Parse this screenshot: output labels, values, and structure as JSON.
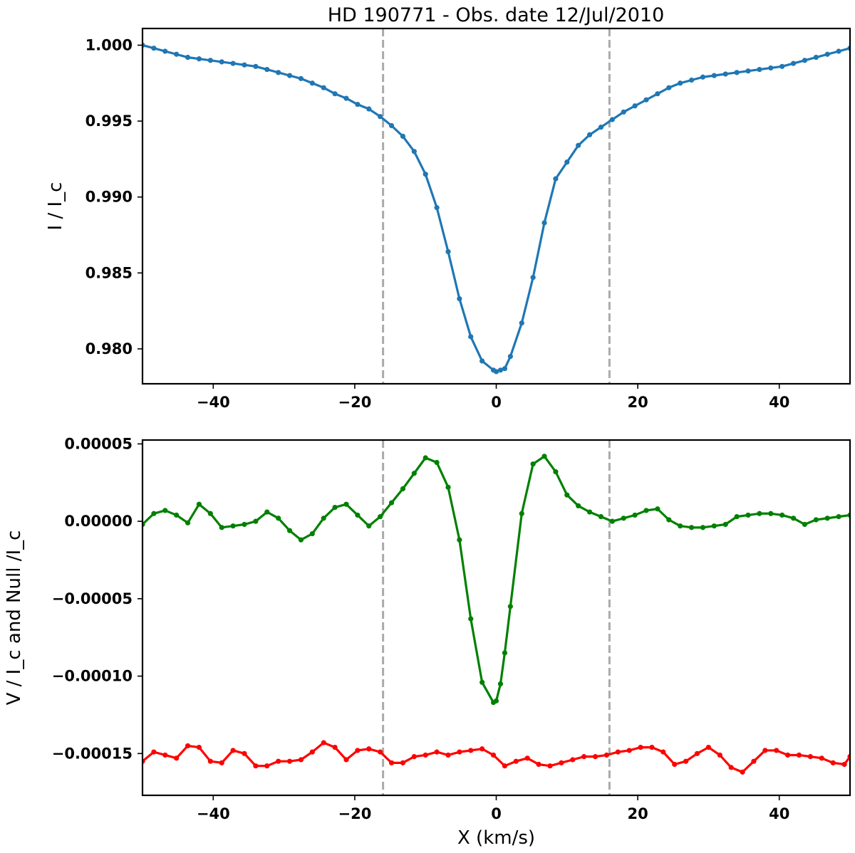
{
  "title": "HD 190771 -  Obs. date  12/Jul/2010",
  "colors": {
    "stokes_i": "#1f77b4",
    "stokes_v": "#008000",
    "null": "#ff0000",
    "marker_lines": "#aaaaaa"
  },
  "chart_data": [
    {
      "type": "line",
      "panel": "top",
      "xlabel": "",
      "ylabel": "I / I_c",
      "xlim": [
        -50,
        50
      ],
      "ylim": [
        0.9777,
        1.0011
      ],
      "xticks": [
        -40,
        -20,
        0,
        20,
        40
      ],
      "xtick_labels": [
        "−40",
        "−20",
        "0",
        "20",
        "40"
      ],
      "yticks": [
        0.98,
        0.985,
        0.99,
        0.995,
        1.0
      ],
      "ytick_labels": [
        "0.980",
        "0.985",
        "0.990",
        "0.995",
        "1.000"
      ],
      "vlines": [
        -16,
        16
      ],
      "grid": false,
      "series": [
        {
          "color": "#1f77b4",
          "x": [
            -50,
            -48.4,
            -46.8,
            -45.2,
            -43.6,
            -42,
            -40.4,
            -38.8,
            -37.2,
            -35.6,
            -34,
            -32.4,
            -30.8,
            -29.2,
            -27.6,
            -26,
            -24.4,
            -22.8,
            -21.2,
            -19.6,
            -18,
            -16.4,
            -14.8,
            -13.2,
            -11.6,
            -10,
            -8.4,
            -6.8,
            -5.2,
            -3.6,
            -2,
            -0.4,
            0,
            0.6,
            1.2,
            2,
            3.6,
            5.2,
            6.8,
            8.4,
            10,
            11.6,
            13.2,
            14.8,
            16.4,
            18,
            19.6,
            21.2,
            22.8,
            24.4,
            26,
            27.6,
            29.2,
            30.8,
            32.4,
            34,
            35.6,
            37.2,
            38.8,
            40.4,
            42,
            43.6,
            45.2,
            46.8,
            48.4,
            50
          ],
          "y": [
            1.0,
            0.9998,
            0.9996,
            0.9994,
            0.9992,
            0.9991,
            0.999,
            0.9989,
            0.9988,
            0.9987,
            0.9986,
            0.9984,
            0.9982,
            0.998,
            0.9978,
            0.9975,
            0.9972,
            0.9968,
            0.9965,
            0.9961,
            0.9958,
            0.9953,
            0.9947,
            0.994,
            0.993,
            0.9915,
            0.9893,
            0.9864,
            0.9833,
            0.9808,
            0.9792,
            0.9786,
            0.9785,
            0.9786,
            0.9787,
            0.9795,
            0.9817,
            0.9847,
            0.9883,
            0.9912,
            0.9923,
            0.9934,
            0.9941,
            0.9946,
            0.9951,
            0.9956,
            0.996,
            0.9964,
            0.9968,
            0.9972,
            0.9975,
            0.9977,
            0.9979,
            0.998,
            0.9981,
            0.9982,
            0.9983,
            0.9984,
            0.9985,
            0.9986,
            0.9988,
            0.999,
            0.9992,
            0.9994,
            0.9996,
            0.9998
          ]
        }
      ]
    },
    {
      "type": "line",
      "panel": "bottom",
      "xlabel": "X  (km/s)",
      "ylabel": "V / I_c  and  Null /I_c",
      "xlim": [
        -50,
        50
      ],
      "ylim": [
        -0.000177,
        5.25e-05
      ],
      "xticks": [
        -40,
        -20,
        0,
        20,
        40
      ],
      "xtick_labels": [
        "−40",
        "−20",
        "0",
        "20",
        "40"
      ],
      "yticks": [
        -0.00015,
        -0.0001,
        -5e-05,
        0.0,
        5e-05
      ],
      "ytick_labels": [
        "−0.00015",
        "−0.00010",
        "−0.00005",
        "0.00000",
        "0.00005"
      ],
      "vlines": [
        -16,
        16
      ],
      "grid": false,
      "series": [
        {
          "color": "#008000",
          "x": [
            -50,
            -48.4,
            -46.8,
            -45.2,
            -43.6,
            -42,
            -40.4,
            -38.8,
            -37.2,
            -35.6,
            -34,
            -32.4,
            -30.8,
            -29.2,
            -27.6,
            -26,
            -24.4,
            -22.8,
            -21.2,
            -19.6,
            -18,
            -16.4,
            -14.8,
            -13.2,
            -11.6,
            -10,
            -8.4,
            -6.8,
            -5.2,
            -3.6,
            -2,
            -0.4,
            0,
            0.6,
            1.2,
            2,
            3.6,
            5.2,
            6.8,
            8.4,
            10,
            11.6,
            13.2,
            14.8,
            16.4,
            18,
            19.6,
            21.2,
            22.8,
            24.4,
            26,
            27.6,
            29.2,
            30.8,
            32.4,
            34,
            35.6,
            37.2,
            38.8,
            40.4,
            42,
            43.6,
            45.2,
            46.8,
            48.4,
            50
          ],
          "y": [
            -2e-06,
            5e-06,
            7e-06,
            4e-06,
            -1e-06,
            1.1e-05,
            5e-06,
            -4e-06,
            -3e-06,
            -2e-06,
            0.0,
            6e-06,
            2e-06,
            -6e-06,
            -1.2e-05,
            -8e-06,
            2e-06,
            9e-06,
            1.1e-05,
            4e-06,
            -3e-06,
            3e-06,
            1.2e-05,
            2.1e-05,
            3.1e-05,
            4.1e-05,
            3.8e-05,
            2.2e-05,
            -1.2e-05,
            -6.3e-05,
            -0.000104,
            -0.000117,
            -0.000116,
            -0.000105,
            -8.5e-05,
            -5.5e-05,
            5e-06,
            3.7e-05,
            4.2e-05,
            3.2e-05,
            1.7e-05,
            1e-05,
            6e-06,
            3e-06,
            0.0,
            2e-06,
            4e-06,
            7e-06,
            8e-06,
            1e-06,
            -3e-06,
            -4e-06,
            -4e-06,
            -3e-06,
            -2e-06,
            3e-06,
            4e-06,
            5e-06,
            5e-06,
            4e-06,
            2e-06,
            -2e-06,
            1e-06,
            2e-06,
            3e-06,
            4e-06
          ]
        },
        {
          "color": "#ff0000",
          "x": [
            -50,
            -48.4,
            -46.8,
            -45.2,
            -43.6,
            -42,
            -40.4,
            -38.8,
            -37.2,
            -35.6,
            -34,
            -32.4,
            -30.8,
            -29.2,
            -27.6,
            -26,
            -24.4,
            -22.8,
            -21.2,
            -19.6,
            -18,
            -16.4,
            -14.8,
            -13.2,
            -11.6,
            -10,
            -8.4,
            -6.8,
            -5.2,
            -3.6,
            -2,
            -0.4,
            1.2,
            2.8,
            4.4,
            6,
            7.6,
            9.2,
            10.8,
            12.4,
            14,
            15.6,
            17.2,
            18.8,
            20.4,
            22,
            23.6,
            25.2,
            26.8,
            28.4,
            30,
            31.6,
            33.2,
            34.8,
            36.4,
            38,
            39.6,
            41.2,
            42.8,
            44.4,
            46,
            47.6,
            49.2,
            50
          ],
          "y": [
            -0.000155,
            -0.000149,
            -0.000151,
            -0.000153,
            -0.000145,
            -0.000146,
            -0.000155,
            -0.000156,
            -0.000148,
            -0.00015,
            -0.000158,
            -0.000158,
            -0.000155,
            -0.000155,
            -0.000154,
            -0.000149,
            -0.000143,
            -0.000146,
            -0.000154,
            -0.000148,
            -0.000147,
            -0.000149,
            -0.000156,
            -0.000156,
            -0.000152,
            -0.000151,
            -0.000149,
            -0.000151,
            -0.000149,
            -0.000148,
            -0.000147,
            -0.000151,
            -0.000158,
            -0.000155,
            -0.000153,
            -0.000157,
            -0.000158,
            -0.000156,
            -0.000154,
            -0.000152,
            -0.000152,
            -0.000151,
            -0.000149,
            -0.000148,
            -0.000146,
            -0.000146,
            -0.000149,
            -0.000157,
            -0.000155,
            -0.00015,
            -0.000146,
            -0.000151,
            -0.000159,
            -0.000162,
            -0.000155,
            -0.000148,
            -0.000148,
            -0.000151,
            -0.000151,
            -0.000152,
            -0.000153,
            -0.000156,
            -0.000157,
            -0.000152
          ]
        }
      ]
    }
  ]
}
